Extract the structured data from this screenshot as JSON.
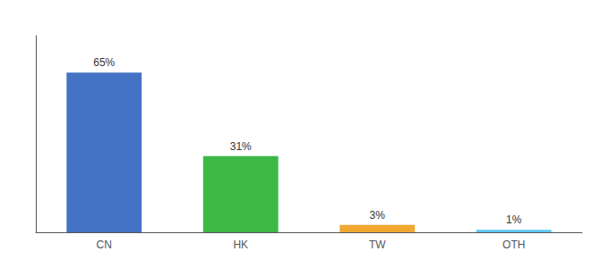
{
  "chart_data": {
    "type": "bar",
    "categories": [
      "CN",
      "HK",
      "TW",
      "OTH"
    ],
    "values": [
      65,
      31,
      3,
      1
    ],
    "value_labels": [
      "65%",
      "31%",
      "3%",
      "1%"
    ],
    "data_labels": true,
    "colors": [
      "#4472C4",
      "#3CB844",
      "#F0A830",
      "#5BC8F5"
    ],
    "ylim": [
      0,
      80
    ],
    "grid": false,
    "tick_labels": "x"
  }
}
